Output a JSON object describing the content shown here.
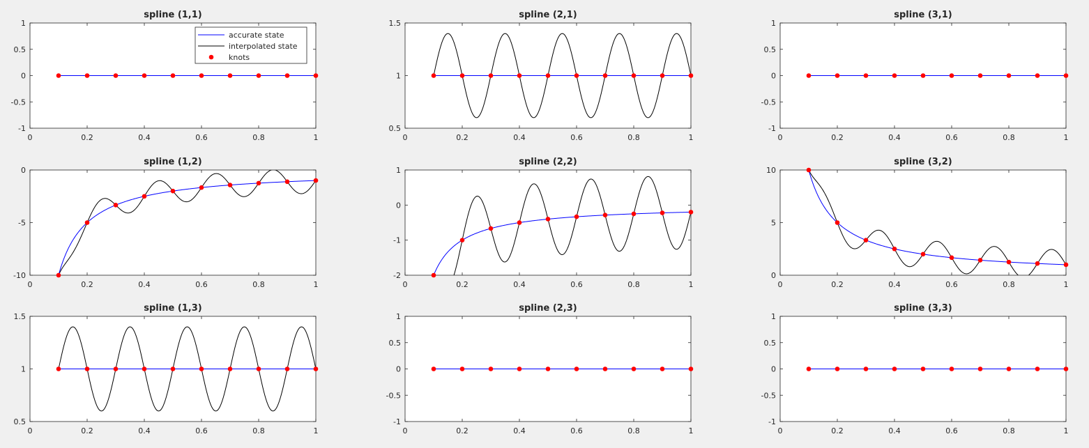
{
  "chart_data": [
    {
      "type": "line",
      "title": "spline (1,1)",
      "xlim": [
        0,
        1
      ],
      "ylim": [
        -1,
        1
      ],
      "xticks": [
        0,
        0.2,
        0.4,
        0.6,
        0.8,
        1
      ],
      "xtick_labels": [
        "0",
        "0.2",
        "0.4",
        "0.6",
        "0.8",
        "1"
      ],
      "yticks": [
        -1,
        -0.5,
        0,
        0.5,
        1
      ],
      "ytick_labels": [
        "-1",
        "-0.5",
        "0",
        "0.5",
        "1"
      ],
      "accurate": {
        "func": "const",
        "c": 0
      },
      "interp_amp": 0,
      "knots_x": [
        0.1,
        0.2,
        0.3,
        0.4,
        0.5,
        0.6,
        0.7,
        0.8,
        0.9,
        1.0
      ],
      "knots_y": [
        0,
        0,
        0,
        0,
        0,
        0,
        0,
        0,
        0,
        0
      ]
    },
    {
      "type": "line",
      "title": "spline (2,1)",
      "xlim": [
        0,
        1
      ],
      "ylim": [
        0.5,
        1.5
      ],
      "xticks": [
        0,
        0.2,
        0.4,
        0.6,
        0.8,
        1
      ],
      "xtick_labels": [
        "0",
        "0.2",
        "0.4",
        "0.6",
        "0.8",
        "1"
      ],
      "yticks": [
        0.5,
        1,
        1.5
      ],
      "ytick_labels": [
        "0.5",
        "1",
        "1.5"
      ],
      "accurate": {
        "func": "const",
        "c": 1
      },
      "interp_amp": -0.4,
      "knots_x": [
        0.1,
        0.2,
        0.3,
        0.4,
        0.5,
        0.6,
        0.7,
        0.8,
        0.9,
        1.0
      ],
      "knots_y": [
        1,
        1,
        1,
        1,
        1,
        1,
        1,
        1,
        1,
        1
      ]
    },
    {
      "type": "line",
      "title": "spline (3,1)",
      "xlim": [
        0,
        1
      ],
      "ylim": [
        -1,
        1
      ],
      "xticks": [
        0,
        0.2,
        0.4,
        0.6,
        0.8,
        1
      ],
      "xtick_labels": [
        "0",
        "0.2",
        "0.4",
        "0.6",
        "0.8",
        "1"
      ],
      "yticks": [
        -1,
        -0.5,
        0,
        0.5,
        1
      ],
      "ytick_labels": [
        "-1",
        "-0.5",
        "0",
        "0.5",
        "1"
      ],
      "accurate": {
        "func": "const",
        "c": 0
      },
      "interp_amp": 0,
      "knots_x": [
        0.1,
        0.2,
        0.3,
        0.4,
        0.5,
        0.6,
        0.7,
        0.8,
        0.9,
        1.0
      ],
      "knots_y": [
        0,
        0,
        0,
        0,
        0,
        0,
        0,
        0,
        0,
        0
      ]
    },
    {
      "type": "line",
      "title": "spline (1,2)",
      "xlim": [
        0,
        1
      ],
      "ylim": [
        -10,
        0
      ],
      "xticks": [
        0,
        0.2,
        0.4,
        0.6,
        0.8,
        1
      ],
      "xtick_labels": [
        "0",
        "0.2",
        "0.4",
        "0.6",
        "0.8",
        "1"
      ],
      "yticks": [
        -10,
        -5,
        0
      ],
      "ytick_labels": [
        "-10",
        "-5",
        "0"
      ],
      "accurate": {
        "func": "recip",
        "c": -1
      },
      "interp_amp": 1.2,
      "knots_x": [
        0.1,
        0.2,
        0.3,
        0.4,
        0.5,
        0.6,
        0.7,
        0.8,
        0.9,
        1.0
      ],
      "knots_y": [
        -10,
        -5,
        -3.333,
        -2.5,
        -2,
        -1.667,
        -1.429,
        -1.25,
        -1.111,
        -1
      ]
    },
    {
      "type": "line",
      "title": "spline (2,2)",
      "xlim": [
        0,
        1
      ],
      "ylim": [
        -2,
        1
      ],
      "xticks": [
        0,
        0.2,
        0.4,
        0.6,
        0.8,
        1
      ],
      "xtick_labels": [
        "0",
        "0.2",
        "0.4",
        "0.6",
        "0.8",
        "1"
      ],
      "yticks": [
        -2,
        -1,
        0,
        1
      ],
      "ytick_labels": [
        "-2",
        "-1",
        "0",
        "1"
      ],
      "accurate": {
        "func": "recip",
        "c": -0.2
      },
      "interp_amp": 1.05,
      "knots_x": [
        0.1,
        0.2,
        0.3,
        0.4,
        0.5,
        0.6,
        0.7,
        0.8,
        0.9,
        1.0
      ],
      "knots_y": [
        -2,
        -1,
        -0.667,
        -0.5,
        -0.4,
        -0.333,
        -0.286,
        -0.25,
        -0.222,
        -0.2
      ]
    },
    {
      "type": "line",
      "title": "spline (3,2)",
      "xlim": [
        0,
        1
      ],
      "ylim": [
        0,
        10
      ],
      "xticks": [
        0,
        0.2,
        0.4,
        0.6,
        0.8,
        1
      ],
      "xtick_labels": [
        "0",
        "0.2",
        "0.4",
        "0.6",
        "0.8",
        "1"
      ],
      "yticks": [
        0,
        5,
        10
      ],
      "ytick_labels": [
        "0",
        "5",
        "10"
      ],
      "accurate": {
        "func": "recip",
        "c": 1
      },
      "interp_amp": -1.4,
      "knots_x": [
        0.1,
        0.2,
        0.3,
        0.4,
        0.5,
        0.6,
        0.7,
        0.8,
        0.9,
        1.0
      ],
      "knots_y": [
        10,
        5,
        3.333,
        2.5,
        2,
        1.667,
        1.429,
        1.25,
        1.111,
        1
      ]
    },
    {
      "type": "line",
      "title": "spline (1,3)",
      "xlim": [
        0,
        1
      ],
      "ylim": [
        0.5,
        1.5
      ],
      "xticks": [
        0,
        0.2,
        0.4,
        0.6,
        0.8,
        1
      ],
      "xtick_labels": [
        "0",
        "0.2",
        "0.4",
        "0.6",
        "0.8",
        "1"
      ],
      "yticks": [
        0.5,
        1,
        1.5
      ],
      "ytick_labels": [
        "0.5",
        "1",
        "1.5"
      ],
      "accurate": {
        "func": "const",
        "c": 1
      },
      "interp_amp": -0.4,
      "knots_x": [
        0.1,
        0.2,
        0.3,
        0.4,
        0.5,
        0.6,
        0.7,
        0.8,
        0.9,
        1.0
      ],
      "knots_y": [
        1,
        1,
        1,
        1,
        1,
        1,
        1,
        1,
        1,
        1
      ]
    },
    {
      "type": "line",
      "title": "spline (2,3)",
      "xlim": [
        0,
        1
      ],
      "ylim": [
        -1,
        1
      ],
      "xticks": [
        0,
        0.2,
        0.4,
        0.6,
        0.8,
        1
      ],
      "xtick_labels": [
        "0",
        "0.2",
        "0.4",
        "0.6",
        "0.8",
        "1"
      ],
      "yticks": [
        -1,
        -0.5,
        0,
        0.5,
        1
      ],
      "ytick_labels": [
        "-1",
        "-0.5",
        "0",
        "0.5",
        "1"
      ],
      "accurate": {
        "func": "const",
        "c": 0
      },
      "interp_amp": 0,
      "knots_x": [
        0.1,
        0.2,
        0.3,
        0.4,
        0.5,
        0.6,
        0.7,
        0.8,
        0.9,
        1.0
      ],
      "knots_y": [
        0,
        0,
        0,
        0,
        0,
        0,
        0,
        0,
        0,
        0
      ]
    },
    {
      "type": "line",
      "title": "spline (3,3)",
      "xlim": [
        0,
        1
      ],
      "ylim": [
        -1,
        1
      ],
      "xticks": [
        0,
        0.2,
        0.4,
        0.6,
        0.8,
        1
      ],
      "xtick_labels": [
        "0",
        "0.2",
        "0.4",
        "0.6",
        "0.8",
        "1"
      ],
      "yticks": [
        -1,
        -0.5,
        0,
        0.5,
        1
      ],
      "ytick_labels": [
        "-1",
        "-0.5",
        "0",
        "0.5",
        "1"
      ],
      "accurate": {
        "func": "const",
        "c": 0
      },
      "interp_amp": 0,
      "knots_x": [
        0.1,
        0.2,
        0.3,
        0.4,
        0.5,
        0.6,
        0.7,
        0.8,
        0.9,
        1.0
      ],
      "knots_y": [
        0,
        0,
        0,
        0,
        0,
        0,
        0,
        0,
        0,
        0
      ]
    }
  ],
  "legend": {
    "placement": "top-right of spline (1,1)",
    "entries": [
      {
        "label": "accurate state",
        "color": "#0000ff",
        "marker": "line"
      },
      {
        "label": "interpolated state",
        "color": "#000000",
        "marker": "line"
      },
      {
        "label": "knots",
        "color": "#ff0000",
        "marker": "dot"
      }
    ]
  },
  "colors": {
    "accurate": "#0000ff",
    "interpolated": "#000000",
    "knots": "#ff0000",
    "axes_bg": "#ffffff",
    "figure_bg": "#f0f0f0"
  }
}
